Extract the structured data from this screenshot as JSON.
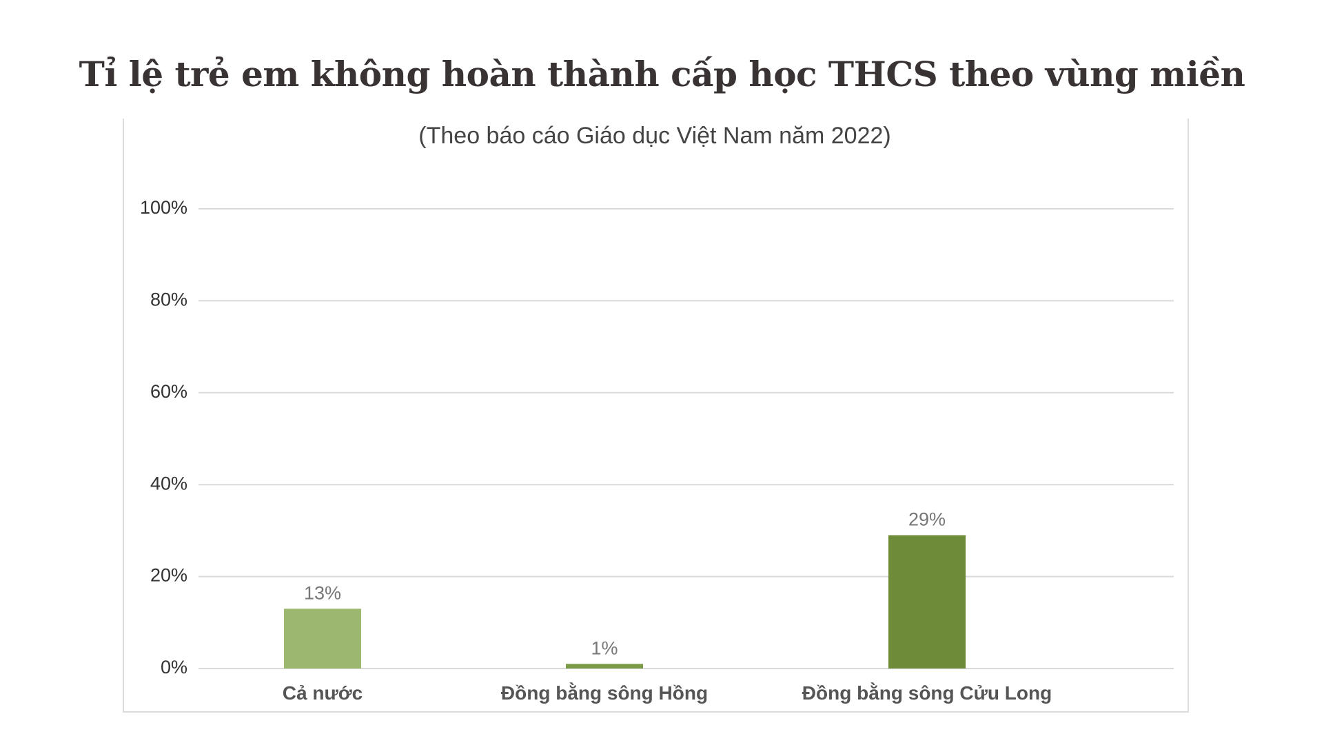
{
  "title": "Tỉ lệ trẻ em không hoàn thành cấp học THCS theo vùng miền",
  "subtitle": "(Theo báo cáo Giáo dục Việt Nam năm 2022)",
  "chart_data": {
    "type": "bar",
    "title": "Tỉ lệ trẻ em không hoàn thành cấp học THCS theo vùng miền",
    "subtitle": "(Theo báo cáo Giáo dục Việt Nam năm 2022)",
    "categories": [
      "Cả nước",
      "Đồng bằng sông Hồng",
      "Đồng bằng sông Cửu Long"
    ],
    "values": [
      13,
      1,
      29
    ],
    "data_labels": [
      "13%",
      "1%",
      "29%"
    ],
    "bar_colors": [
      "#9bb86e",
      "#7a9a48",
      "#6e8b39"
    ],
    "ylim": [
      0,
      100
    ],
    "yticks": [
      0,
      20,
      40,
      60,
      80,
      100
    ],
    "ytick_labels": [
      "0%",
      "20%",
      "40%",
      "60%",
      "80%",
      "100%"
    ],
    "xlabel": "",
    "ylabel": "",
    "grid": true,
    "legend": "none"
  },
  "colors": {
    "title": "#3a3333",
    "gridline": "#d9d9d9",
    "frame": "#dcdcdc"
  }
}
